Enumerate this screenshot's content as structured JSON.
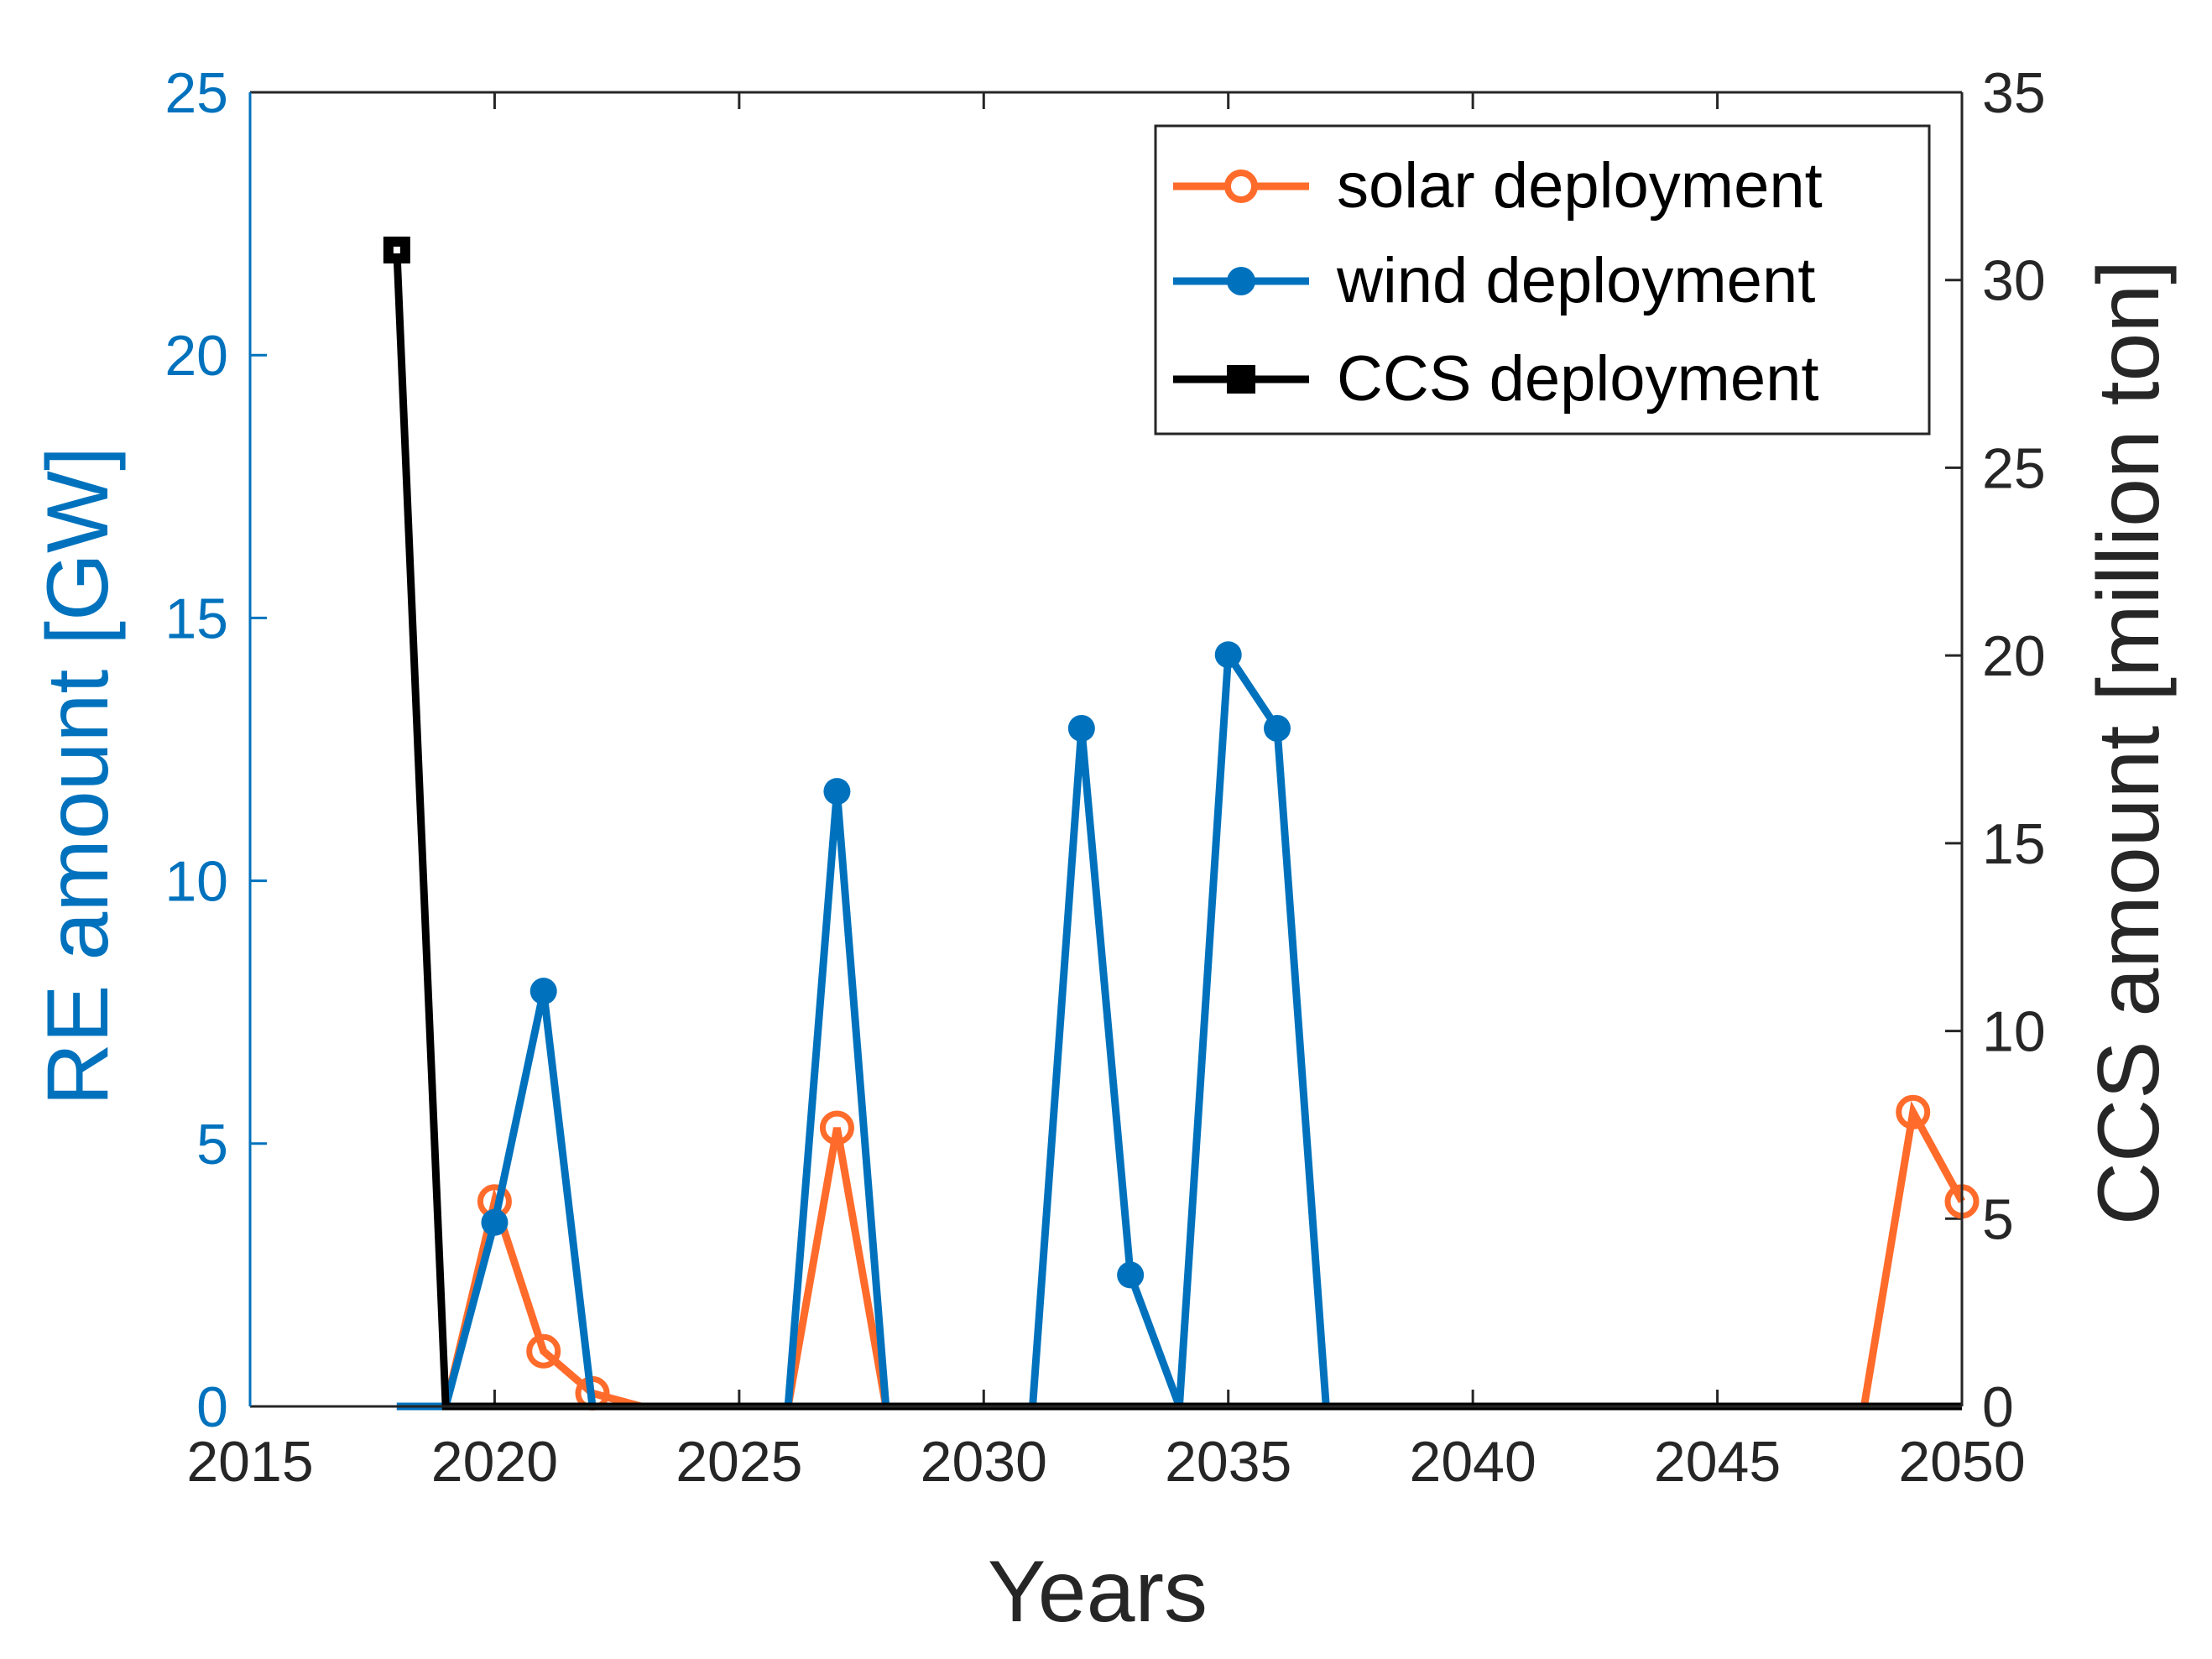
{
  "chart_data": {
    "type": "line",
    "x": [
      2018,
      2019,
      2020,
      2021,
      2022,
      2023,
      2024,
      2025,
      2026,
      2027,
      2028,
      2029,
      2030,
      2031,
      2032,
      2033,
      2034,
      2035,
      2036,
      2037,
      2038,
      2039,
      2040,
      2041,
      2042,
      2043,
      2044,
      2045,
      2046,
      2047,
      2048,
      2049,
      2050
    ],
    "xlim": [
      2015,
      2050
    ],
    "xticks": [
      "2015",
      "2020",
      "2025",
      "2030",
      "2035",
      "2040",
      "2045",
      "2050"
    ],
    "xticks_values": [
      2015,
      2020,
      2025,
      2030,
      2035,
      2040,
      2045,
      2050
    ],
    "xlabel": "Years",
    "ylabel_left": "RE amount [GW]",
    "ylim_left": [
      0,
      25
    ],
    "yticks_left": [
      "0",
      "5",
      "10",
      "15",
      "20",
      "25"
    ],
    "yticks_left_values": [
      0,
      5,
      10,
      15,
      20,
      25
    ],
    "ylabel_right": "CCS amount [million ton]",
    "ylim_right": [
      0,
      35
    ],
    "yticks_right": [
      "0",
      "5",
      "10",
      "15",
      "20",
      "25",
      "30",
      "35"
    ],
    "yticks_right_values": [
      0,
      5,
      10,
      15,
      20,
      25,
      30,
      35
    ],
    "legend_position": "top-right",
    "series": [
      {
        "name": "solar deployment",
        "axis": "left",
        "color": "#FF6B2B",
        "marker": "open-circle",
        "values": [
          0,
          0,
          3.9,
          1.05,
          0.25,
          0,
          0,
          0,
          0,
          5.3,
          0,
          0,
          0,
          0,
          0,
          0,
          0,
          0,
          0,
          0,
          0,
          0,
          0,
          0,
          0,
          0,
          0,
          0,
          0,
          0,
          0,
          5.6,
          3.9
        ]
      },
      {
        "name": "wind deployment",
        "axis": "left",
        "color": "#0072BD",
        "marker": "filled-circle",
        "values": [
          0,
          0,
          3.5,
          7.9,
          0,
          0,
          0,
          0,
          0,
          11.7,
          0,
          0,
          0,
          0,
          12.9,
          2.5,
          0,
          14.3,
          12.9,
          0,
          0,
          0,
          0,
          0,
          0,
          0,
          0,
          0,
          0,
          0,
          0,
          0,
          0
        ]
      },
      {
        "name": "CCS deployment",
        "axis": "right",
        "color": "#000000",
        "marker": "filled-square",
        "values": [
          30.8,
          0,
          0,
          0,
          0,
          0,
          0,
          0,
          0,
          0,
          0,
          0,
          0,
          0,
          0,
          0,
          0,
          0,
          0,
          0,
          0,
          0,
          0,
          0,
          0,
          0,
          0,
          0,
          0,
          0,
          0,
          0,
          0
        ]
      }
    ]
  },
  "colors": {
    "left_axis": "#0072BD",
    "right_axis": "#262626",
    "x_axis": "#262626"
  }
}
